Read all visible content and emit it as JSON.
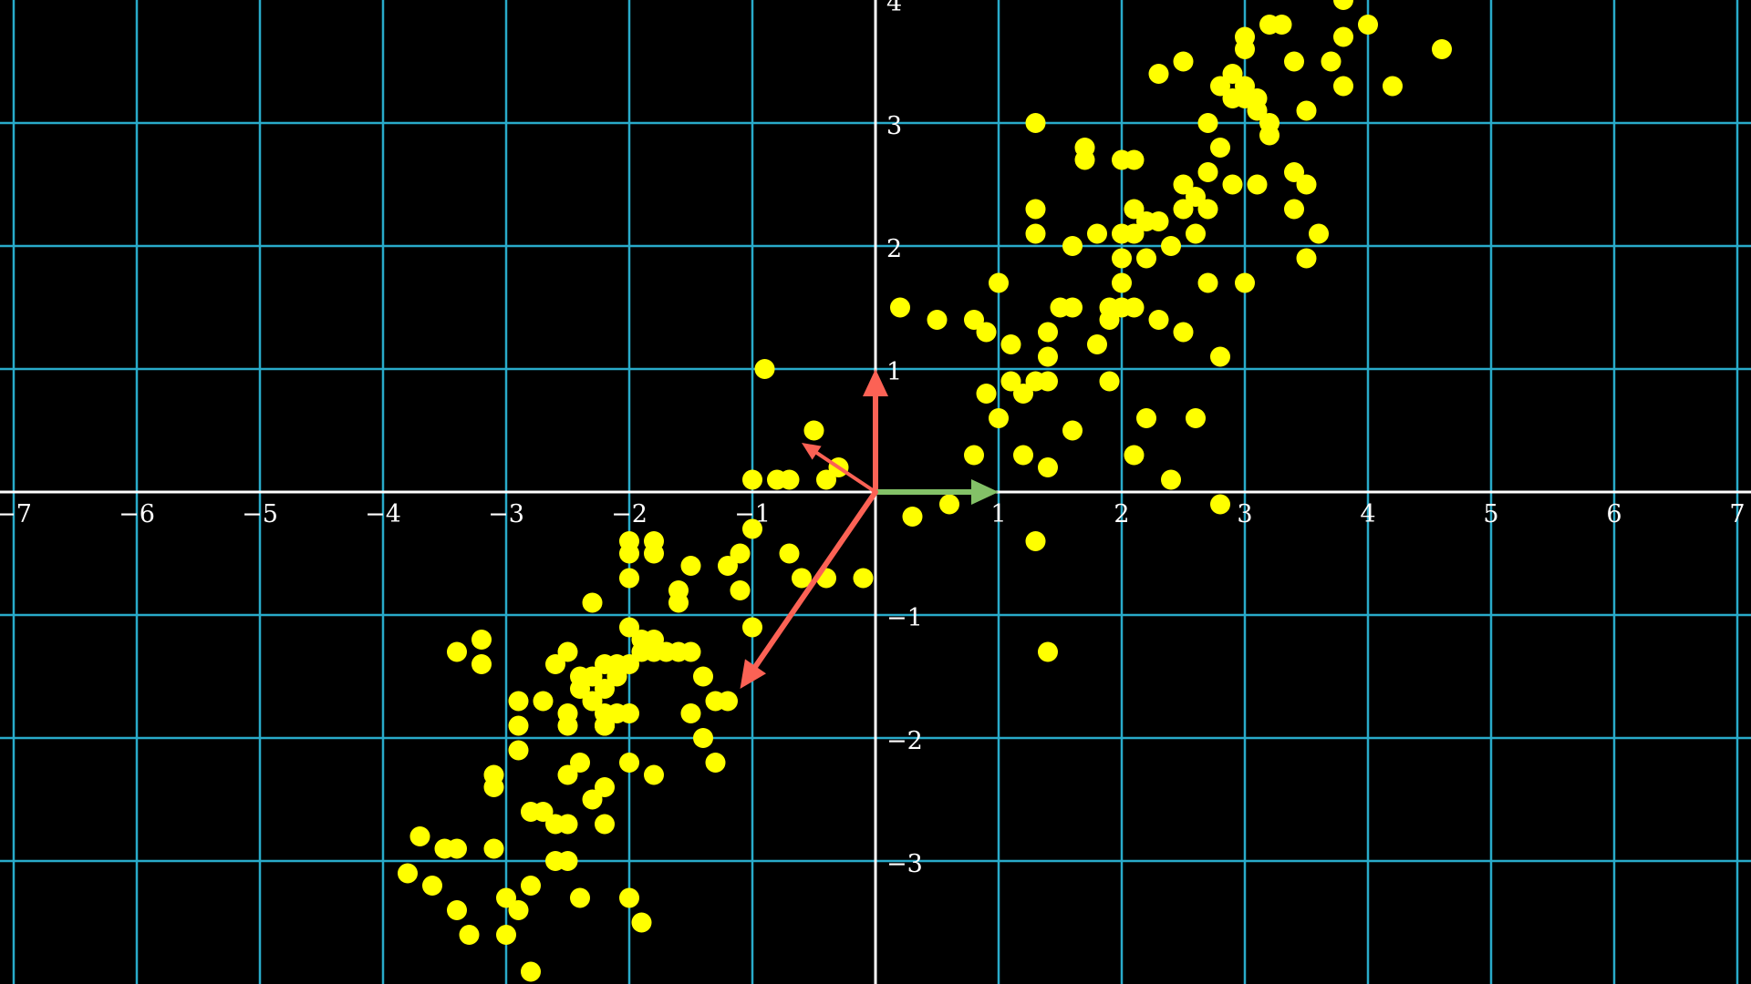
{
  "chart_data": {
    "type": "scatter",
    "title": "",
    "xlabel": "",
    "ylabel": "",
    "xlim": [
      -7.1,
      7.1
    ],
    "ylim": [
      -3.99,
      3.99
    ],
    "grid": true,
    "colors": {
      "background": "#000000",
      "grid": "#29abca",
      "axes": "#ffffff",
      "points": "#ffff00",
      "red_vectors": "#fc6255",
      "green_vector": "#83c167",
      "labels": "#ffffff"
    },
    "x_ticks": [
      {
        "value": -7,
        "label": "−7"
      },
      {
        "value": -6,
        "label": "−6"
      },
      {
        "value": -5,
        "label": "−5"
      },
      {
        "value": -4,
        "label": "−4"
      },
      {
        "value": -3,
        "label": "−3"
      },
      {
        "value": -2,
        "label": "−2"
      },
      {
        "value": -1,
        "label": "−1"
      },
      {
        "value": 1,
        "label": "1"
      },
      {
        "value": 2,
        "label": "2"
      },
      {
        "value": 3,
        "label": "3"
      },
      {
        "value": 4,
        "label": "4"
      },
      {
        "value": 5,
        "label": "5"
      },
      {
        "value": 6,
        "label": "6"
      },
      {
        "value": 7,
        "label": "7"
      }
    ],
    "y_ticks": [
      {
        "value": -3,
        "label": "−3"
      },
      {
        "value": -2,
        "label": "−2"
      },
      {
        "value": -1,
        "label": "−1"
      },
      {
        "value": 1,
        "label": "1"
      },
      {
        "value": 2,
        "label": "2"
      },
      {
        "value": 3,
        "label": "3"
      },
      {
        "value": 4,
        "label": "4"
      }
    ],
    "vectors": [
      {
        "id": "vector-red-vertical",
        "x": 0,
        "y": 1,
        "color": "#fc6255"
      },
      {
        "id": "vector-green-horizontal",
        "x": 1,
        "y": 0,
        "color": "#83c167"
      },
      {
        "id": "vector-red-long",
        "x": -1.1,
        "y": -1.6,
        "color": "#fc6255"
      },
      {
        "id": "vector-red-short",
        "x": -0.6,
        "y": 0.4,
        "color": "#fc6255"
      }
    ],
    "points": [
      [
        -3.8,
        -3.1
      ],
      [
        -3.7,
        -2.8
      ],
      [
        -3.6,
        -3.2
      ],
      [
        -3.5,
        -2.9
      ],
      [
        -3.4,
        -3.4
      ],
      [
        -3.4,
        -2.9
      ],
      [
        -3.4,
        -1.3
      ],
      [
        -3.3,
        -3.6
      ],
      [
        -3.2,
        -1.2
      ],
      [
        -3.2,
        -1.4
      ],
      [
        -3.1,
        -2.4
      ],
      [
        -3.1,
        -2.3
      ],
      [
        -3.1,
        -2.9
      ],
      [
        -3.0,
        -3.3
      ],
      [
        -3.0,
        -3.6
      ],
      [
        -2.9,
        -1.7
      ],
      [
        -2.9,
        -1.9
      ],
      [
        -2.9,
        -3.4
      ],
      [
        -2.9,
        -2.1
      ],
      [
        -2.8,
        -2.6
      ],
      [
        -2.8,
        -3.2
      ],
      [
        -2.8,
        -3.9
      ],
      [
        -2.7,
        -2.6
      ],
      [
        -2.7,
        -1.7
      ],
      [
        -2.6,
        -1.4
      ],
      [
        -2.6,
        -2.7
      ],
      [
        -2.6,
        -3.0
      ],
      [
        -2.5,
        -1.9
      ],
      [
        -2.5,
        -2.7
      ],
      [
        -2.5,
        -2.3
      ],
      [
        -2.5,
        -3.0
      ],
      [
        -2.5,
        -1.3
      ],
      [
        -2.5,
        -1.8
      ],
      [
        -2.4,
        -1.6
      ],
      [
        -2.4,
        -2.2
      ],
      [
        -2.4,
        -1.5
      ],
      [
        -2.4,
        -3.3
      ],
      [
        -2.3,
        -2.5
      ],
      [
        -2.3,
        -1.7
      ],
      [
        -2.3,
        -0.9
      ],
      [
        -2.3,
        -1.5
      ],
      [
        -2.2,
        -1.6
      ],
      [
        -2.2,
        -2.7
      ],
      [
        -2.2,
        -1.9
      ],
      [
        -2.2,
        -1.9
      ],
      [
        -2.2,
        -1.9
      ],
      [
        -2.2,
        -1.8
      ],
      [
        -2.2,
        -1.4
      ],
      [
        -2.2,
        -2.4
      ],
      [
        -2.1,
        -1.4
      ],
      [
        -2.1,
        -1.5
      ],
      [
        -2.1,
        -1.8
      ],
      [
        -2.0,
        -3.3
      ],
      [
        -2.0,
        -1.4
      ],
      [
        -2.0,
        -2.2
      ],
      [
        -2.0,
        -1.8
      ],
      [
        -2.0,
        -0.7
      ],
      [
        -2.0,
        -0.4
      ],
      [
        -2.0,
        -0.5
      ],
      [
        -2.0,
        -1.1
      ],
      [
        -1.9,
        -1.2
      ],
      [
        -1.9,
        -3.5
      ],
      [
        -1.9,
        -1.3
      ],
      [
        -1.8,
        -1.3
      ],
      [
        -1.8,
        -2.3
      ],
      [
        -1.8,
        -1.2
      ],
      [
        -1.8,
        -0.4
      ],
      [
        -1.8,
        -0.5
      ],
      [
        -1.7,
        -1.3
      ],
      [
        -1.6,
        -1.3
      ],
      [
        -1.6,
        -0.9
      ],
      [
        -1.6,
        -0.8
      ],
      [
        -1.5,
        -1.3
      ],
      [
        -1.5,
        -1.8
      ],
      [
        -1.5,
        -0.6
      ],
      [
        -1.4,
        -2.0
      ],
      [
        -1.4,
        -1.5
      ],
      [
        -1.3,
        -1.7
      ],
      [
        -1.3,
        -2.2
      ],
      [
        -1.2,
        -1.7
      ],
      [
        -1.2,
        -0.6
      ],
      [
        -1.1,
        -0.8
      ],
      [
        -1.1,
        -0.5
      ],
      [
        -1.0,
        -0.3
      ],
      [
        -1.0,
        -1.1
      ],
      [
        -1.0,
        0.1
      ],
      [
        -0.9,
        1.0
      ],
      [
        -0.8,
        0.1
      ],
      [
        -0.7,
        -0.5
      ],
      [
        -0.7,
        0.1
      ],
      [
        -0.6,
        -0.7
      ],
      [
        -0.5,
        0.5
      ],
      [
        -0.4,
        -0.7
      ],
      [
        -0.4,
        0.1
      ],
      [
        -0.3,
        0.2
      ],
      [
        -0.1,
        -0.7
      ],
      [
        0.2,
        1.5
      ],
      [
        0.3,
        -0.2
      ],
      [
        0.5,
        1.4
      ],
      [
        0.6,
        -0.1
      ],
      [
        0.8,
        0.3
      ],
      [
        0.8,
        1.4
      ],
      [
        0.9,
        1.3
      ],
      [
        0.9,
        0.8
      ],
      [
        1.0,
        1.7
      ],
      [
        1.0,
        0.6
      ],
      [
        1.1,
        1.2
      ],
      [
        1.1,
        0.9
      ],
      [
        1.2,
        0.8
      ],
      [
        1.2,
        0.3
      ],
      [
        1.3,
        -0.4
      ],
      [
        1.3,
        3.0
      ],
      [
        1.3,
        2.1
      ],
      [
        1.3,
        2.3
      ],
      [
        1.3,
        0.9
      ],
      [
        1.4,
        1.3
      ],
      [
        1.4,
        1.1
      ],
      [
        1.4,
        0.2
      ],
      [
        1.4,
        -1.3
      ],
      [
        1.4,
        0.9
      ],
      [
        1.5,
        1.5
      ],
      [
        1.6,
        0.5
      ],
      [
        1.6,
        2.0
      ],
      [
        1.6,
        1.5
      ],
      [
        1.7,
        2.8
      ],
      [
        1.7,
        2.7
      ],
      [
        1.8,
        2.1
      ],
      [
        1.8,
        1.2
      ],
      [
        1.9,
        0.9
      ],
      [
        1.9,
        1.5
      ],
      [
        1.9,
        1.4
      ],
      [
        2.0,
        2.7
      ],
      [
        2.0,
        1.7
      ],
      [
        2.0,
        1.9
      ],
      [
        2.0,
        2.1
      ],
      [
        2.0,
        1.5
      ],
      [
        2.1,
        2.3
      ],
      [
        2.1,
        2.1
      ],
      [
        2.1,
        0.3
      ],
      [
        2.1,
        1.5
      ],
      [
        2.1,
        2.7
      ],
      [
        2.2,
        0.6
      ],
      [
        2.2,
        1.9
      ],
      [
        2.2,
        2.2
      ],
      [
        2.3,
        3.4
      ],
      [
        2.3,
        2.2
      ],
      [
        2.3,
        1.4
      ],
      [
        2.4,
        2.0
      ],
      [
        2.4,
        0.1
      ],
      [
        2.5,
        2.3
      ],
      [
        2.5,
        1.3
      ],
      [
        2.5,
        3.5
      ],
      [
        2.5,
        2.5
      ],
      [
        2.6,
        2.4
      ],
      [
        2.6,
        0.6
      ],
      [
        2.6,
        2.1
      ],
      [
        2.7,
        1.7
      ],
      [
        2.7,
        2.3
      ],
      [
        2.7,
        3.0
      ],
      [
        2.7,
        2.6
      ],
      [
        2.8,
        1.1
      ],
      [
        2.8,
        -0.1
      ],
      [
        2.8,
        2.8
      ],
      [
        2.8,
        3.3
      ],
      [
        2.9,
        2.5
      ],
      [
        2.9,
        3.2
      ],
      [
        2.9,
        3.4
      ],
      [
        3.0,
        1.7
      ],
      [
        3.0,
        3.3
      ],
      [
        3.0,
        3.6
      ],
      [
        3.0,
        3.2
      ],
      [
        3.0,
        3.7
      ],
      [
        3.1,
        3.1
      ],
      [
        3.1,
        3.2
      ],
      [
        3.1,
        2.5
      ],
      [
        3.2,
        3.0
      ],
      [
        3.2,
        2.9
      ],
      [
        3.2,
        3.8
      ],
      [
        3.3,
        3.8
      ],
      [
        3.4,
        2.6
      ],
      [
        3.4,
        3.5
      ],
      [
        3.4,
        2.3
      ],
      [
        3.5,
        3.1
      ],
      [
        3.5,
        1.9
      ],
      [
        3.5,
        2.5
      ],
      [
        3.6,
        2.1
      ],
      [
        3.7,
        3.5
      ],
      [
        3.8,
        3.7
      ],
      [
        3.8,
        3.3
      ],
      [
        3.8,
        4.0
      ],
      [
        4.0,
        3.8
      ],
      [
        4.2,
        3.3
      ],
      [
        4.6,
        3.6
      ]
    ]
  }
}
